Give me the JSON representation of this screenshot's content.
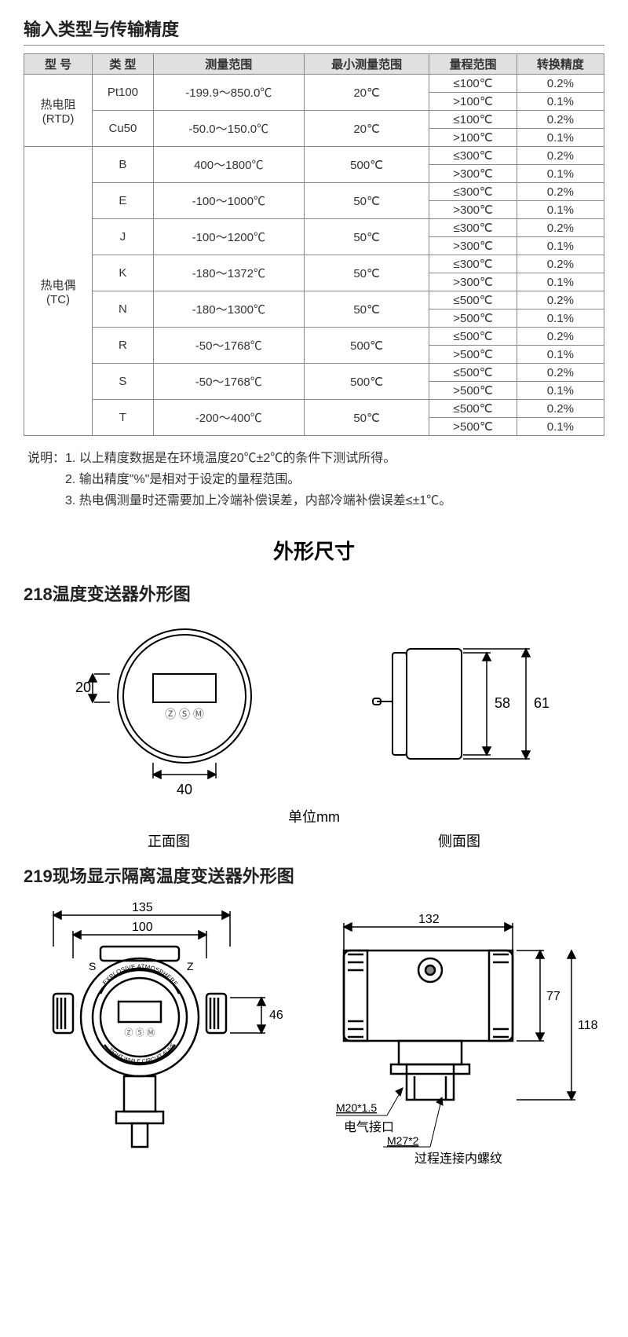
{
  "title1": "输入类型与传输精度",
  "table": {
    "headers": [
      "型 号",
      "类 型",
      "测量范围",
      "最小测量范围",
      "量程范围",
      "转换精度"
    ],
    "groups": [
      {
        "model": "热电阻\n(RTD)",
        "rows": [
          {
            "type": "Pt100",
            "range": "-199.9～850.0℃",
            "min": "20℃",
            "span": "≤100℃",
            "acc": "0.2%"
          },
          {
            "type": "",
            "range": "",
            "min": "",
            "span": ">100℃",
            "acc": "0.1%"
          },
          {
            "type": "Cu50",
            "range": "-50.0～150.0℃",
            "min": "20℃",
            "span": "≤100℃",
            "acc": "0.2%"
          },
          {
            "type": "",
            "range": "",
            "min": "",
            "span": ">100℃",
            "acc": "0.1%"
          }
        ]
      },
      {
        "model": "热电偶\n(TC)",
        "rows": [
          {
            "type": "B",
            "range": "400～1800℃",
            "min": "500℃",
            "span": "≤300℃",
            "acc": "0.2%"
          },
          {
            "type": "",
            "range": "",
            "min": "",
            "span": ">300℃",
            "acc": "0.1%"
          },
          {
            "type": "E",
            "range": "-100～1000℃",
            "min": "50℃",
            "span": "≤300℃",
            "acc": "0.2%"
          },
          {
            "type": "",
            "range": "",
            "min": "",
            "span": ">300℃",
            "acc": "0.1%"
          },
          {
            "type": "J",
            "range": "-100～1200℃",
            "min": "50℃",
            "span": "≤300℃",
            "acc": "0.2%"
          },
          {
            "type": "",
            "range": "",
            "min": "",
            "span": ">300℃",
            "acc": "0.1%"
          },
          {
            "type": "K",
            "range": "-180～1372℃",
            "min": "50℃",
            "span": "≤300℃",
            "acc": "0.2%"
          },
          {
            "type": "",
            "range": "",
            "min": "",
            "span": ">300℃",
            "acc": "0.1%"
          },
          {
            "type": "N",
            "range": "-180～1300℃",
            "min": "50℃",
            "span": "≤500℃",
            "acc": "0.2%"
          },
          {
            "type": "",
            "range": "",
            "min": "",
            "span": ">500℃",
            "acc": "0.1%"
          },
          {
            "type": "R",
            "range": "-50～1768℃",
            "min": "500℃",
            "span": "≤500℃",
            "acc": "0.2%"
          },
          {
            "type": "",
            "range": "",
            "min": "",
            "span": ">500℃",
            "acc": "0.1%"
          },
          {
            "type": "S",
            "range": "-50～1768℃",
            "min": "500℃",
            "span": "≤500℃",
            "acc": "0.2%"
          },
          {
            "type": "",
            "range": "",
            "min": "",
            "span": ">500℃",
            "acc": "0.1%"
          },
          {
            "type": "T",
            "range": "-200～400℃",
            "min": "50℃",
            "span": "≤500℃",
            "acc": "0.2%"
          },
          {
            "type": "",
            "range": "",
            "min": "",
            "span": ">500℃",
            "acc": "0.1%"
          }
        ]
      }
    ]
  },
  "notes_prefix": "说明：",
  "notes": [
    "1. 以上精度数据是在环境温度20℃±2℃的条件下测试所得。",
    "2. 输出精度\"%\"是相对于设定的量程范围。",
    "3. 热电偶测量时还需要加上冷端补偿误差，内部冷端补偿误差≤±1℃。"
  ],
  "dim_title": "外形尺寸",
  "sub218": "218温度变送器外形图",
  "sub219": "219现场显示隔离温度变送器外形图",
  "unit": "单位mm",
  "front_label": "正面图",
  "side_label": "侧面图",
  "d218": {
    "w": "40",
    "h": "20",
    "side_h1": "58",
    "side_h2": "61",
    "zsm": "Ⓩ Ⓢ Ⓜ"
  },
  "d219": {
    "w1": "135",
    "w2": "100",
    "h1": "46",
    "w3": "132",
    "h2": "77",
    "h3": "118",
    "m1": "M20*1.5",
    "m2": "M27*2",
    "elec": "电气接口",
    "thread": "过程连接内螺纹",
    "s": "S",
    "z": "Z",
    "text1": "EXPLOSIVE ATMOSPHERE",
    "text2": "TIGHT WHILE CIRCUIT ALIVE"
  },
  "colors": {
    "border": "#888",
    "header_bg": "#e0e0e0",
    "text": "#333",
    "stroke": "#000"
  }
}
